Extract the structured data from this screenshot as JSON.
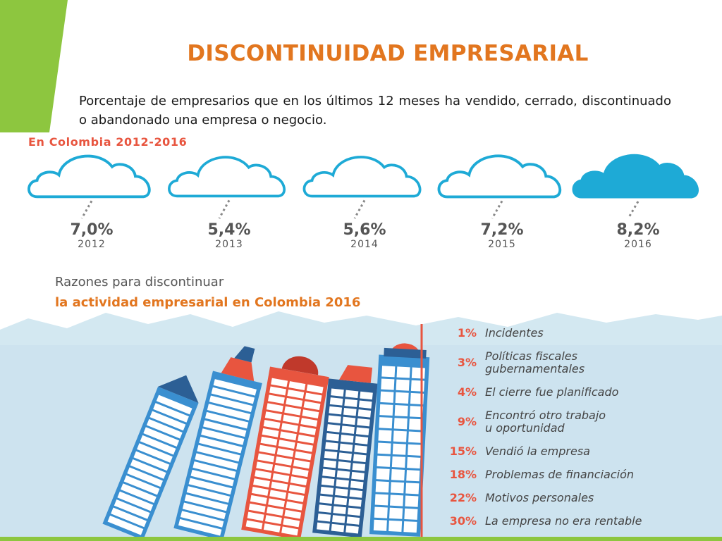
{
  "header": {
    "title": "DISCONTINUIDAD EMPRESARIAL",
    "description": "Porcentaje de empresarios que en los últimos 12 meses ha vendido, cerrado, discontinuado o abandonado una empresa o negocio."
  },
  "colors": {
    "title": "#e2761f",
    "accent_green": "#8dc63f",
    "cloud": "#1eaad6",
    "subtitle": "#e8553f",
    "sky": "#d3e8f1",
    "building_blue": "#3a8fd0",
    "building_red": "#e8553f",
    "building_dark": "#2c5f95"
  },
  "chart_data": [
    {
      "type": "bar",
      "title": "En Colombia 2012-2016",
      "categories": [
        "2012",
        "2013",
        "2014",
        "2015",
        "2016"
      ],
      "labels": [
        "7,0%",
        "5,4%",
        "5,6%",
        "7,2%",
        "8,2%"
      ],
      "values": [
        7.0,
        5.4,
        5.6,
        7.2,
        8.2
      ],
      "highlight": "2016"
    },
    {
      "type": "table",
      "title_line1": "Razones para discontinuar",
      "title_line2": "la actividad empresarial en Colombia 2016",
      "rows": [
        {
          "pct": "1%",
          "label": [
            "Incidentes"
          ],
          "value": 1
        },
        {
          "pct": "3%",
          "label": [
            "Políticas fiscales",
            "gubernamentales"
          ],
          "value": 3
        },
        {
          "pct": "4%",
          "label": [
            "El cierre fue planificado"
          ],
          "value": 4
        },
        {
          "pct": "9%",
          "label": [
            "Encontró otro trabajo",
            "u oportunidad"
          ],
          "value": 9
        },
        {
          "pct": "15%",
          "label": [
            "Vendió la empresa"
          ],
          "value": 15
        },
        {
          "pct": "18%",
          "label": [
            "Problemas de financiación"
          ],
          "value": 18
        },
        {
          "pct": "22%",
          "label": [
            "Motivos personales"
          ],
          "value": 22
        },
        {
          "pct": "30%",
          "label": [
            "La empresa no era rentable"
          ],
          "value": 30
        }
      ]
    }
  ]
}
